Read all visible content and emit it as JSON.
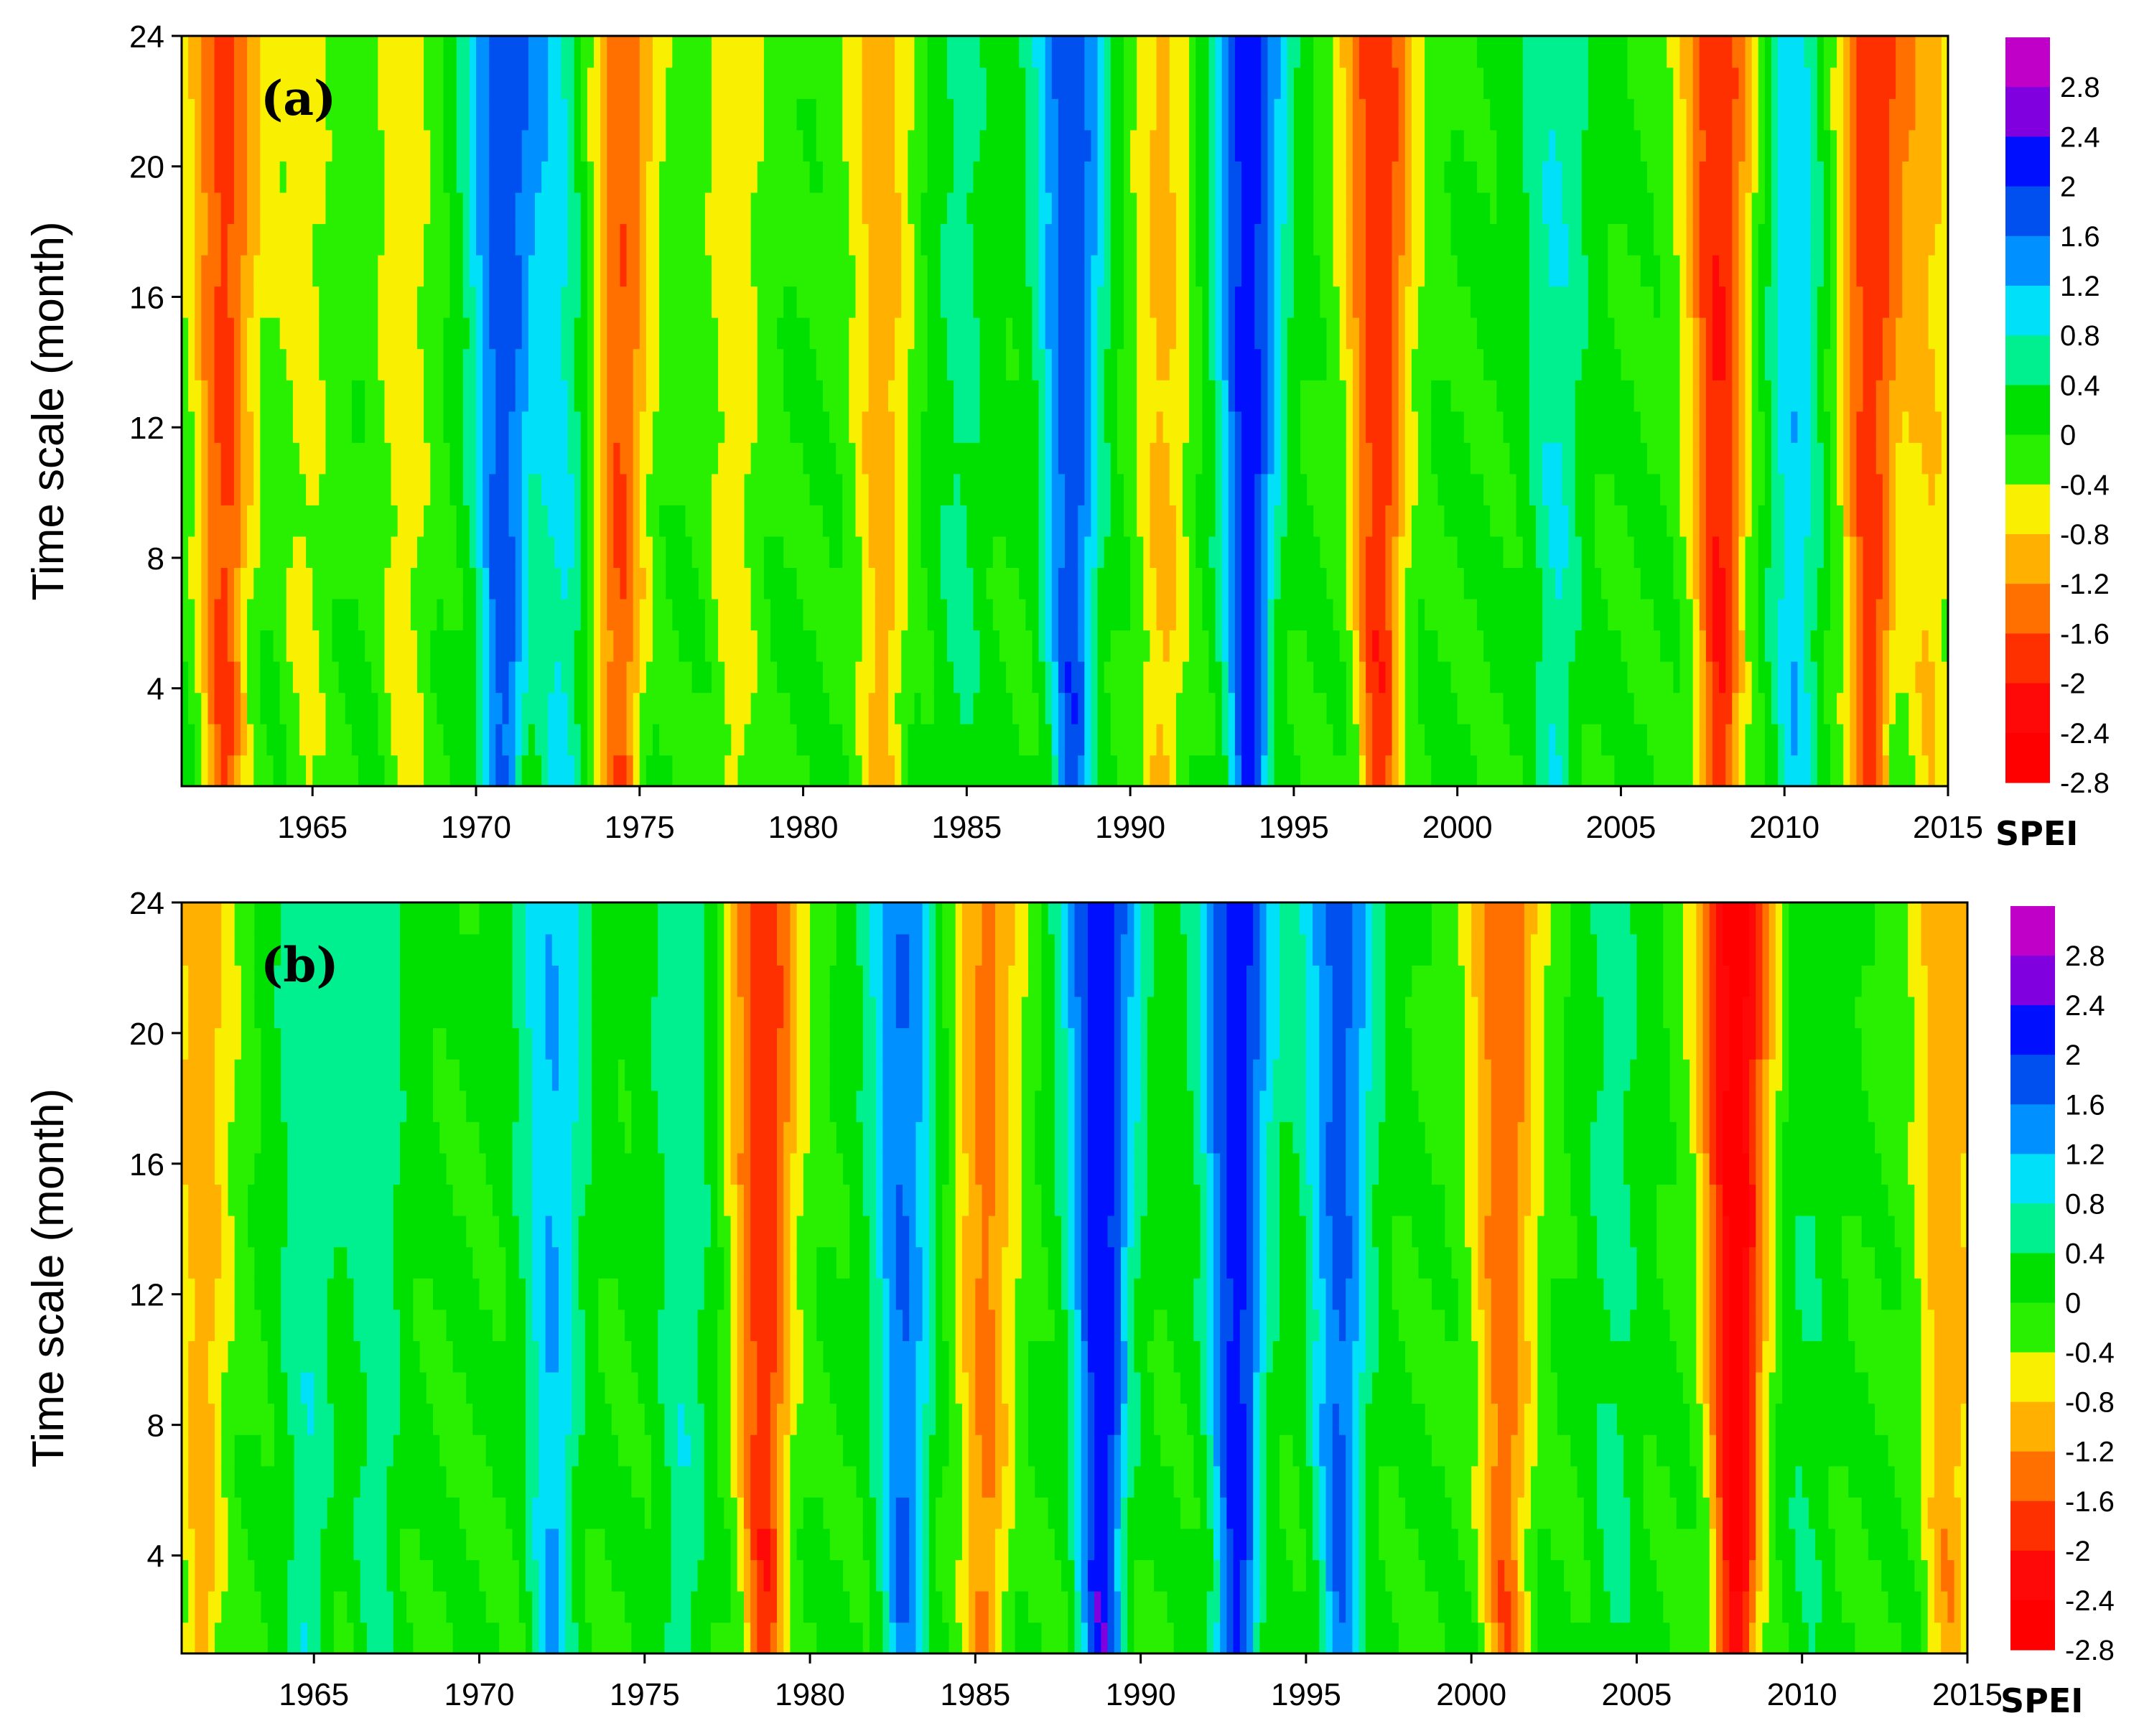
{
  "chart_data": [
    {
      "type": "heatmap",
      "panel_label": "(a)",
      "title": "",
      "xlabel": "",
      "ylabel": "Time scale (month)",
      "xlim": [
        1961,
        2015
      ],
      "ylim": [
        1,
        24
      ],
      "x_ticks": [
        1965,
        1970,
        1975,
        1980,
        1985,
        1990,
        1995,
        2000,
        2005,
        2010,
        2015
      ],
      "y_ticks": [
        4,
        8,
        12,
        16,
        20,
        24
      ],
      "colorbar_title": "SPEI",
      "colorbar_levels": [
        2.8,
        2.4,
        2,
        1.6,
        1.2,
        0.8,
        0.4,
        0,
        -0.4,
        -0.8,
        -1.2,
        -1.6,
        -2,
        -2.4,
        -2.8
      ],
      "colorbar_colors": [
        "#c000c8",
        "#8000e0",
        "#0010ff",
        "#0050f0",
        "#0090ff",
        "#00e0f8",
        "#00f090",
        "#00e000",
        "#28f000",
        "#f8f000",
        "#ffb000",
        "#ff7000",
        "#ff3000",
        "#ff0808",
        "#ff0000"
      ],
      "anomalies": [
        {
          "x": 1962.3,
          "v": -1.7
        },
        {
          "x": 1964.8,
          "v": -0.5
        },
        {
          "x": 1967.8,
          "v": -0.6
        },
        {
          "x": 1970.8,
          "v": 1.8
        },
        {
          "x": 1972.6,
          "v": 0.9
        },
        {
          "x": 1974.4,
          "v": -1.6
        },
        {
          "x": 1977.9,
          "v": -0.6
        },
        {
          "x": 1982.4,
          "v": -1.0
        },
        {
          "x": 1984.8,
          "v": 0.5
        },
        {
          "x": 1988.2,
          "v": 1.9
        },
        {
          "x": 1991.0,
          "v": -0.9
        },
        {
          "x": 1993.6,
          "v": 2.2
        },
        {
          "x": 1997.6,
          "v": -1.9
        },
        {
          "x": 2003.0,
          "v": 0.8
        },
        {
          "x": 2008.0,
          "v": -2.0
        },
        {
          "x": 2010.3,
          "v": 1.1
        },
        {
          "x": 2012.6,
          "v": -1.8
        },
        {
          "x": 2014.4,
          "v": -0.8
        }
      ]
    },
    {
      "type": "heatmap",
      "panel_label": "(b)",
      "title": "",
      "xlabel": "",
      "ylabel": "Time scale (month)",
      "xlim": [
        1961,
        2015
      ],
      "ylim": [
        1,
        24
      ],
      "x_ticks": [
        1965,
        1970,
        1975,
        1980,
        1985,
        1990,
        1995,
        2000,
        2005,
        2010,
        2015
      ],
      "y_ticks": [
        4,
        8,
        12,
        16,
        20,
        24
      ],
      "colorbar_title": "SPEI",
      "colorbar_levels": [
        2.8,
        2.4,
        2,
        1.6,
        1.2,
        0.8,
        0.4,
        0,
        -0.4,
        -0.8,
        -1.2,
        -1.6,
        -2,
        -2.4,
        -2.8
      ],
      "colorbar_colors": [
        "#c000c8",
        "#8000e0",
        "#0010ff",
        "#0050f0",
        "#0090ff",
        "#00e0f8",
        "#00f090",
        "#00e000",
        "#28f000",
        "#f8f000",
        "#ffb000",
        "#ff7000",
        "#ff3000",
        "#ff0808",
        "#ff0000"
      ],
      "anomalies": [
        {
          "x": 1961.6,
          "v": -1.0
        },
        {
          "x": 1964.8,
          "v": 0.7
        },
        {
          "x": 1966.9,
          "v": 0.6
        },
        {
          "x": 1972.2,
          "v": 1.2
        },
        {
          "x": 1976.2,
          "v": 0.7
        },
        {
          "x": 1978.6,
          "v": -1.9
        },
        {
          "x": 1982.8,
          "v": 1.6
        },
        {
          "x": 1985.3,
          "v": -1.3
        },
        {
          "x": 1988.8,
          "v": 2.3
        },
        {
          "x": 1992.9,
          "v": 2.2
        },
        {
          "x": 1996.0,
          "v": 1.7
        },
        {
          "x": 2001.0,
          "v": -1.5
        },
        {
          "x": 2004.3,
          "v": 0.5
        },
        {
          "x": 2008.0,
          "v": -2.6
        },
        {
          "x": 2010.1,
          "v": 0.4
        },
        {
          "x": 2014.4,
          "v": -1.1
        }
      ]
    }
  ]
}
